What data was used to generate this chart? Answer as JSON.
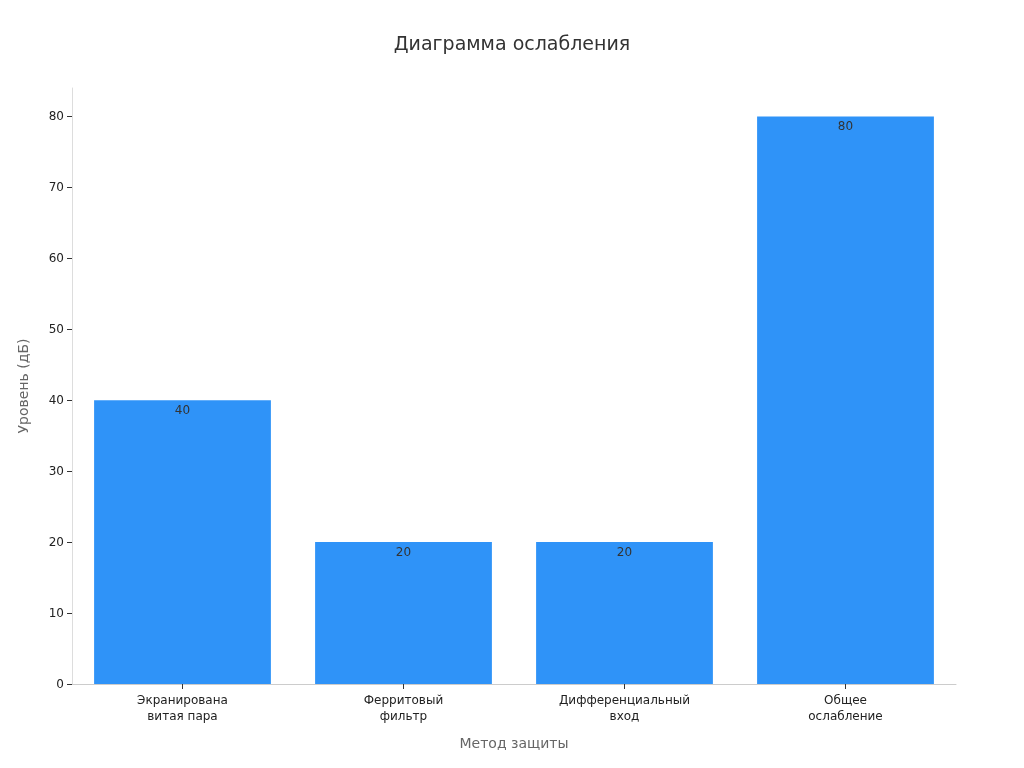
{
  "chart_data": {
    "type": "bar",
    "title": "Диаграмма ослабления",
    "xlabel": "Метод защиты",
    "ylabel": "Уровень (дБ)",
    "categories": [
      "Экранирована\nвитая пара",
      "Ферритовый\nфильтр",
      "Дифференциальный\nвход",
      "Общее\nослабление"
    ],
    "values": [
      40,
      20,
      20,
      80
    ],
    "color": "#2f93f8",
    "ylim": [
      0,
      84
    ],
    "yticks": [
      0,
      10,
      20,
      30,
      40,
      50,
      60,
      70,
      80
    ],
    "grid": false,
    "data_labels": true
  }
}
